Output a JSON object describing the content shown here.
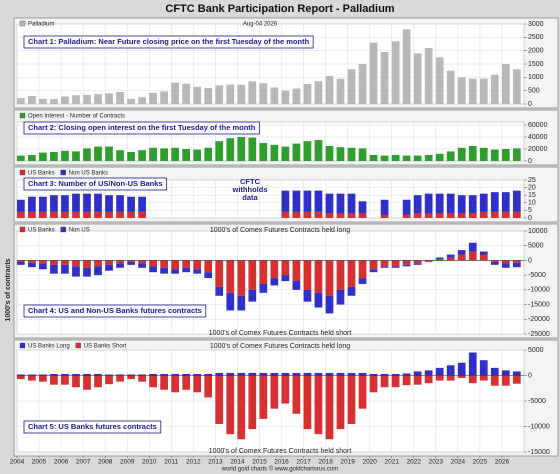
{
  "header": {
    "title": "CFTC Bank Participation Report - Palladium",
    "y_label": "1000's of contracts",
    "footer": "world gold charts © www.goldchartsrus.com"
  },
  "chart_data": [
    {
      "type": "bar",
      "title": "Chart 1: Palladium: Near Future closing price on the first Tuesday of the month",
      "date_label": "Aug-04 2026",
      "x": [
        2004,
        2004.5,
        2005,
        2005.5,
        2006,
        2006.5,
        2007,
        2007.5,
        2008,
        2008.5,
        2009,
        2009.5,
        2010,
        2010.5,
        2011,
        2011.5,
        2012,
        2012.5,
        2013,
        2013.5,
        2014,
        2014.5,
        2015,
        2015.5,
        2016,
        2016.5,
        2017,
        2017.5,
        2018,
        2018.5,
        2019,
        2019.5,
        2020,
        2020.5,
        2021,
        2021.5,
        2022,
        2022.5,
        2023,
        2023.5,
        2024,
        2024.5,
        2025,
        2025.5,
        2026,
        2026.5
      ],
      "series": [
        {
          "name": "Palladium",
          "color": "#b8b8b8",
          "values": [
            220,
            300,
            190,
            185,
            280,
            330,
            340,
            370,
            400,
            450,
            190,
            250,
            420,
            470,
            800,
            760,
            650,
            600,
            700,
            730,
            720,
            850,
            780,
            620,
            500,
            580,
            750,
            850,
            1050,
            950,
            1300,
            1500,
            2300,
            1950,
            2350,
            2800,
            1900,
            2100,
            1750,
            1250,
            1000,
            950,
            950,
            1100,
            1500,
            1300
          ]
        }
      ],
      "xlim": [
        2004,
        2027
      ],
      "ylim": [
        0,
        3000
      ],
      "yticks": [
        0,
        500,
        1000,
        1500,
        2000,
        2500,
        3000
      ],
      "grid": true
    },
    {
      "type": "bar",
      "title": "Chart 2: Closing open interest on the first Tuesday of the month",
      "x": [
        2004,
        2004.5,
        2005,
        2005.5,
        2006,
        2006.5,
        2007,
        2007.5,
        2008,
        2008.5,
        2009,
        2009.5,
        2010,
        2010.5,
        2011,
        2011.5,
        2012,
        2012.5,
        2013,
        2013.5,
        2014,
        2014.5,
        2015,
        2015.5,
        2016,
        2016.5,
        2017,
        2017.5,
        2018,
        2018.5,
        2019,
        2019.5,
        2020,
        2020.5,
        2021,
        2021.5,
        2022,
        2022.5,
        2023,
        2023.5,
        2024,
        2024.5,
        2025,
        2025.5,
        2026,
        2026.5
      ],
      "series": [
        {
          "name": "Open Interest - Number of Contracts",
          "color": "#2e9e2e",
          "values": [
            9000,
            10000,
            14000,
            15000,
            17000,
            16000,
            21000,
            24000,
            24000,
            18000,
            15000,
            18000,
            22000,
            21000,
            22000,
            20000,
            19000,
            22000,
            33000,
            38000,
            40000,
            39000,
            30000,
            27000,
            24000,
            29000,
            33000,
            35000,
            25000,
            23000,
            22000,
            21000,
            10000,
            9000,
            10000,
            9000,
            9000,
            10000,
            12000,
            16000,
            22000,
            25000,
            22000,
            19000,
            20000,
            21000
          ]
        }
      ],
      "xlim": [
        2004,
        2027
      ],
      "ylim": [
        0,
        65000
      ],
      "yticks": [
        0,
        20000,
        40000,
        60000
      ],
      "grid": true
    },
    {
      "type": "stacked-bar",
      "title": "Chart 3: Number of US/Non-US Banks",
      "annotation": [
        "CFTC",
        "withholds",
        "data"
      ],
      "x": [
        2004,
        2004.5,
        2005,
        2005.5,
        2006,
        2006.5,
        2007,
        2007.5,
        2008,
        2008.5,
        2009,
        2009.5,
        2010,
        2010.5,
        2011,
        2011.5,
        2012,
        2012.5,
        2013,
        2013.5,
        2014,
        2014.5,
        2015,
        2015.5,
        2016,
        2016.5,
        2017,
        2017.5,
        2018,
        2018.5,
        2019,
        2019.5,
        2020,
        2020.5,
        2021,
        2021.5,
        2022,
        2022.5,
        2023,
        2023.5,
        2024,
        2024.5,
        2025,
        2025.5,
        2026,
        2026.5
      ],
      "series": [
        {
          "name": "US Banks",
          "color": "#d63030",
          "values": [
            4,
            4,
            4,
            4,
            4,
            4,
            4,
            4,
            4,
            4,
            4,
            4,
            null,
            null,
            null,
            null,
            null,
            null,
            null,
            null,
            null,
            null,
            null,
            null,
            4,
            4,
            4,
            4,
            3,
            3,
            3,
            3,
            null,
            2,
            null,
            2,
            3,
            3,
            3,
            3,
            3,
            3,
            4,
            4,
            4,
            4
          ]
        },
        {
          "name": "Non US Banks",
          "color": "#3030c8",
          "values": [
            8,
            10,
            10,
            11,
            11,
            12,
            12,
            12,
            11,
            11,
            10,
            10,
            null,
            null,
            null,
            null,
            null,
            null,
            null,
            null,
            null,
            null,
            null,
            null,
            14,
            14,
            14,
            14,
            13,
            13,
            13,
            8,
            null,
            10,
            null,
            10,
            12,
            13,
            13,
            13,
            12,
            12,
            12,
            13,
            13,
            14
          ]
        }
      ],
      "xlim": [
        2004,
        2027
      ],
      "ylim": [
        0,
        25
      ],
      "yticks": [
        0,
        5,
        10,
        15,
        20,
        25
      ],
      "grid": true
    },
    {
      "type": "stacked-bar",
      "title": "Chart 4: US and Non-US Banks futures contracts",
      "label_top": "1000's of Comex Futures Contracts held long",
      "label_bottom": "1000's of Comex Futures Contracts held short",
      "x": [
        2004,
        2004.5,
        2005,
        2005.5,
        2006,
        2006.5,
        2007,
        2007.5,
        2008,
        2008.5,
        2009,
        2009.5,
        2010,
        2010.5,
        2011,
        2011.5,
        2012,
        2012.5,
        2013,
        2013.5,
        2014,
        2014.5,
        2015,
        2015.5,
        2016,
        2016.5,
        2017,
        2017.5,
        2018,
        2018.5,
        2019,
        2019.5,
        2020,
        2020.5,
        2021,
        2021.5,
        2022,
        2022.5,
        2023,
        2023.5,
        2024,
        2024.5,
        2025,
        2025.5,
        2026,
        2026.5
      ],
      "series": [
        {
          "name": "US Banks",
          "color": "#d63030",
          "values": [
            -500,
            -800,
            -1000,
            -1500,
            -1500,
            -2000,
            -2500,
            -2000,
            -1500,
            -1000,
            -500,
            -1000,
            -2000,
            -2500,
            -3000,
            -2500,
            -3000,
            -4000,
            -9000,
            -11000,
            -12000,
            -10000,
            -8000,
            -6000,
            -5000,
            -7000,
            -10000,
            -11000,
            -12000,
            -10000,
            -9000,
            -6000,
            -3000,
            -2000,
            -2000,
            -1500,
            -1000,
            -500,
            500,
            1000,
            2000,
            3000,
            2000,
            -500,
            -1000,
            -800
          ]
        },
        {
          "name": "Non US",
          "color": "#3030c8",
          "values": [
            -1000,
            -1500,
            -2000,
            -3000,
            -3000,
            -3500,
            -3000,
            -3000,
            -2000,
            -1500,
            -1000,
            -1500,
            -2000,
            -2000,
            -1500,
            -1500,
            -1500,
            -2000,
            -3000,
            -6000,
            -5000,
            -4000,
            -3000,
            -2500,
            -2000,
            -3000,
            -4000,
            -5000,
            -6000,
            -5000,
            -3000,
            -2000,
            -1000,
            -500,
            -500,
            -500,
            -500,
            0,
            500,
            1000,
            1500,
            3000,
            1000,
            -1000,
            -1500,
            -1500
          ]
        }
      ],
      "xlim": [
        2004,
        2027
      ],
      "ylim": [
        -25000,
        10000
      ],
      "yticks": [
        -25000,
        -20000,
        -15000,
        -10000,
        -5000,
        0,
        5000,
        10000
      ],
      "grid": true
    },
    {
      "type": "stacked-bar",
      "title": "Chart 5: US Banks futures contracts",
      "label_top": "1000's of Comex Futures Contracts held long",
      "label_bottom": "1000's of Comex Futures Contracts held short",
      "x": [
        2004,
        2004.5,
        2005,
        2005.5,
        2006,
        2006.5,
        2007,
        2007.5,
        2008,
        2008.5,
        2009,
        2009.5,
        2010,
        2010.5,
        2011,
        2011.5,
        2012,
        2012.5,
        2013,
        2013.5,
        2014,
        2014.5,
        2015,
        2015.5,
        2016,
        2016.5,
        2017,
        2017.5,
        2018,
        2018.5,
        2019,
        2019.5,
        2020,
        2020.5,
        2021,
        2021.5,
        2022,
        2022.5,
        2023,
        2023.5,
        2024,
        2024.5,
        2025,
        2025.5,
        2026,
        2026.5
      ],
      "series": [
        {
          "name": "US Banks Long",
          "color": "#3030c8",
          "values": [
            200,
            200,
            200,
            300,
            300,
            300,
            300,
            300,
            200,
            200,
            200,
            200,
            300,
            300,
            300,
            300,
            300,
            300,
            500,
            500,
            500,
            500,
            500,
            500,
            500,
            500,
            500,
            500,
            500,
            500,
            500,
            500,
            300,
            300,
            300,
            400,
            800,
            1000,
            1500,
            2000,
            2500,
            4500,
            3000,
            1500,
            1000,
            800
          ]
        },
        {
          "name": "US Banks Short",
          "color": "#d63030",
          "values": [
            -700,
            -1000,
            -1200,
            -1800,
            -1800,
            -2300,
            -2800,
            -2300,
            -1700,
            -1200,
            -700,
            -1200,
            -2300,
            -2800,
            -3300,
            -2800,
            -3300,
            -4300,
            -9500,
            -11500,
            -12500,
            -10500,
            -8500,
            -6500,
            -5500,
            -7500,
            -10500,
            -11500,
            -12500,
            -10500,
            -9500,
            -6500,
            -3300,
            -2300,
            -2300,
            -1900,
            -1800,
            -1500,
            -1000,
            -1000,
            -500,
            -1500,
            -1000,
            -2000,
            -2000,
            -1600
          ]
        }
      ],
      "xlim": [
        2004,
        2027
      ],
      "ylim": [
        -15000,
        5000
      ],
      "yticks": [
        -15000,
        -10000,
        -5000,
        0,
        5000
      ],
      "grid": true,
      "xticks": [
        2004,
        2005,
        2006,
        2007,
        2008,
        2009,
        2010,
        2011,
        2012,
        2013,
        2014,
        2015,
        2016,
        2017,
        2018,
        2019,
        2020,
        2021,
        2022,
        2023,
        2024,
        2025,
        2026
      ]
    }
  ]
}
